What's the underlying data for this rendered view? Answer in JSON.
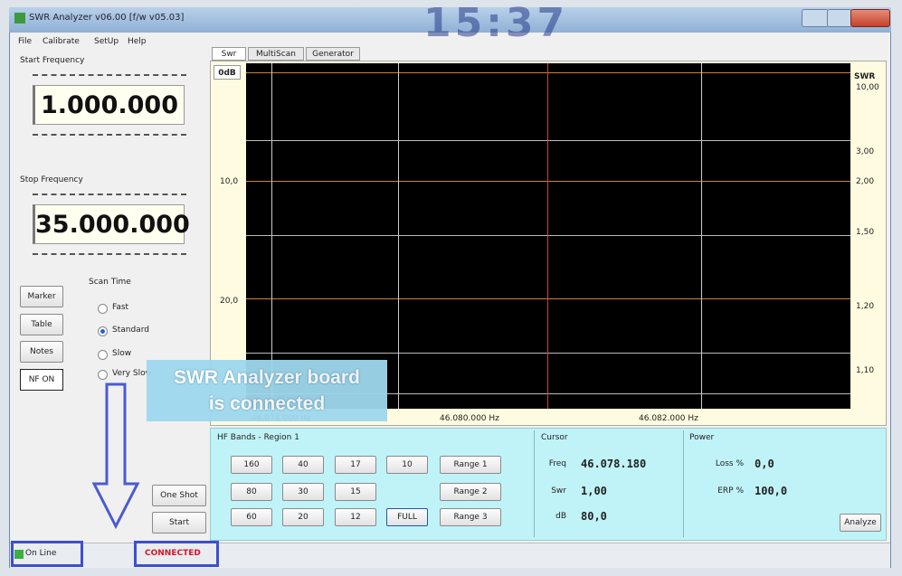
{
  "window": {
    "title": "SWR Analyzer v06.00 [f/w v05.03]",
    "clock": "15:37"
  },
  "menu": [
    "File",
    "Calibrate",
    "SetUp",
    "Help"
  ],
  "start_frequency": {
    "label": "Start Frequency",
    "value": "1.000.000"
  },
  "stop_frequency": {
    "label": "Stop Frequency",
    "value": "35.000.000"
  },
  "side_buttons": [
    "Marker",
    "Table",
    "Notes",
    "NF ON"
  ],
  "scan_time": {
    "label": "Scan Time",
    "options": [
      "Fast",
      "Standard",
      "Slow",
      "Very Slow"
    ],
    "selected": 1
  },
  "tabs": [
    "Swr",
    "MultiScan",
    "Generator"
  ],
  "plot": {
    "left_labels": [
      "0dB",
      "10,0",
      "20,0"
    ],
    "right_labels": [
      "SWR",
      "10,00",
      "3,00",
      "2,00",
      "1,50",
      "1,20",
      "1,10"
    ],
    "x_labels": [
      "46.078.000 Hz",
      "46.080.000 Hz",
      "46.082.000 Hz"
    ]
  },
  "bands": {
    "title": "HF Bands - Region 1",
    "band_buttons": [
      [
        "160",
        "40",
        "17",
        "10"
      ],
      [
        "80",
        "30",
        "15"
      ],
      [
        "60",
        "20",
        "12",
        "FULL"
      ]
    ],
    "range_buttons": [
      "Range 1",
      "Range 2",
      "Range 3"
    ]
  },
  "cursor": {
    "title": "Cursor",
    "fields": [
      {
        "label": "Freq",
        "value": "46.078.180"
      },
      {
        "label": "Swr",
        "value": "1,00"
      },
      {
        "label": "dB",
        "value": "80,0"
      }
    ]
  },
  "power": {
    "title": "Power",
    "fields": [
      {
        "label": "Loss %",
        "value": "0,0"
      },
      {
        "label": "ERP %",
        "value": "100,0"
      }
    ]
  },
  "analyze": "Analyze",
  "actions": {
    "one_shot": "One Shot",
    "start": "Start"
  },
  "status": {
    "online": "On Line",
    "connected": "CONNECTED"
  },
  "callout": [
    "SWR Analyzer board",
    "is connected"
  ]
}
